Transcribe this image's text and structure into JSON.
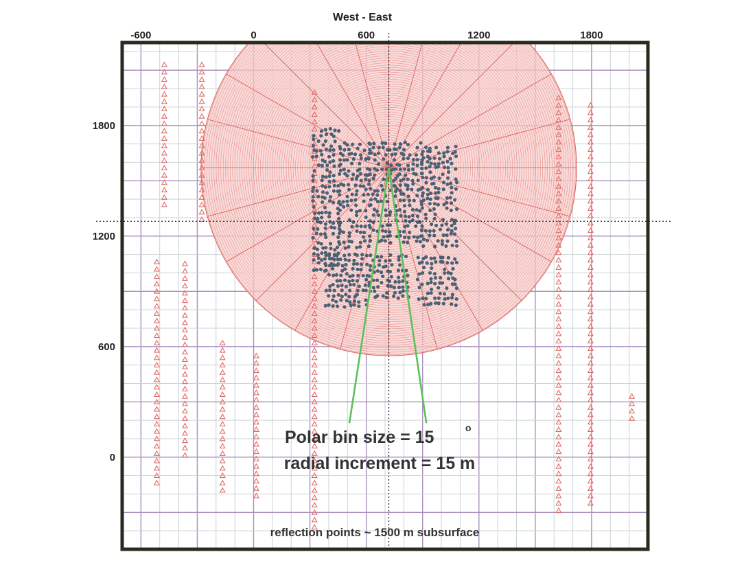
{
  "chart_data": {
    "type": "scatter",
    "title": "",
    "xlabel": "West  -  East",
    "ylabel": "",
    "xlim": [
      -700,
      2100
    ],
    "ylim": [
      -500,
      2250
    ],
    "x_ticks": [
      -600,
      0,
      600,
      1200,
      1800
    ],
    "y_ticks": [
      0,
      600,
      1200,
      1800
    ],
    "grid": true,
    "colors": {
      "frame": "#2a2a1e",
      "grid_minor": "#c9d3d6",
      "grid_major": "#a88fbf",
      "polar_grid": "#e06a66",
      "polar_fill": "#f7cfcc",
      "stations": "#e06a66",
      "reflection_points": "#4a6073",
      "guide_lines": "#5cc15a"
    },
    "polar_bin": {
      "center": [
        720,
        1570
      ],
      "outer_radius": 1000,
      "radial_increment_m": 15,
      "sector_size_deg": 15
    },
    "reference_lines": {
      "vertical_x": 720,
      "horizontal_y": 1280
    },
    "guide_lines": {
      "apex": [
        720,
        1570
      ],
      "ends": [
        [
          510,
          185
        ],
        [
          920,
          185
        ]
      ]
    },
    "series": [
      {
        "marker": "triangle",
        "lines": [
          {
            "x": -520,
            "y_from": 1060,
            "y_to": -140
          },
          {
            "x": -370,
            "y_from": 1050,
            "y_to": -20
          },
          {
            "x": -170,
            "y_from": 620,
            "y_to": -180
          },
          {
            "x": 10,
            "y_from": 550,
            "y_to": -220
          },
          {
            "x": 320,
            "y_from": 1980,
            "y_to": -400
          },
          {
            "x": 1620,
            "y_from": 1950,
            "y_to": -310
          },
          {
            "x": 1790,
            "y_from": 1910,
            "y_to": -270
          },
          {
            "x": -480,
            "y_from": 2130,
            "y_to": 1350
          },
          {
            "x": -280,
            "y_from": 2130,
            "y_to": 1290
          },
          {
            "x": 2010,
            "y_from": 330,
            "y_to": 210
          }
        ]
      },
      {
        "marker": "dot",
        "clusters": [
          {
            "x_from": 320,
            "x_to": 460,
            "y_from": 1020,
            "y_to": 1780
          },
          {
            "x_from": 460,
            "x_to": 620,
            "y_from": 1140,
            "y_to": 1720
          },
          {
            "x_from": 620,
            "x_to": 760,
            "y_from": 1170,
            "y_to": 1720
          },
          {
            "x_from": 760,
            "x_to": 900,
            "y_from": 1170,
            "y_to": 1720
          },
          {
            "x_from": 900,
            "x_to": 1080,
            "y_from": 1150,
            "y_to": 1700
          },
          {
            "x_from": 380,
            "x_to": 600,
            "y_from": 820,
            "y_to": 1100
          },
          {
            "x_from": 620,
            "x_to": 820,
            "y_from": 870,
            "y_to": 1100
          },
          {
            "x_from": 880,
            "x_to": 1090,
            "y_from": 830,
            "y_to": 1100
          }
        ]
      }
    ],
    "annotations": {
      "polar_bin_text": "Polar bin size = 15",
      "degree_symbol": "o",
      "radial_text": "radial increment = 15 m",
      "reflection_text": "reflection points ~ 1500 m subsurface"
    }
  }
}
